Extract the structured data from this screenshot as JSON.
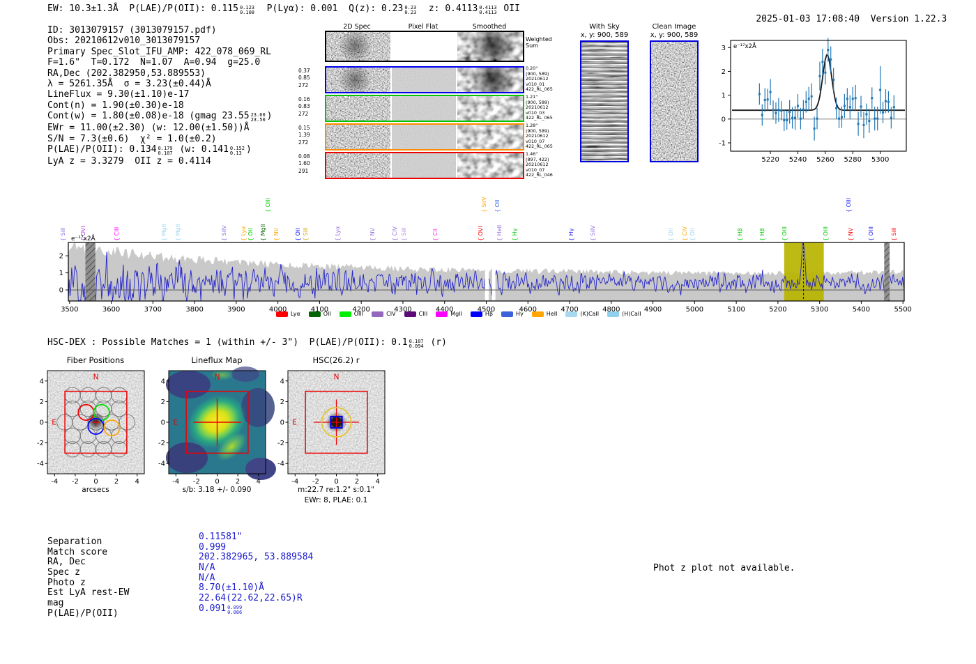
{
  "header": {
    "segments": [
      {
        "t": "EW: 10.3±1.3Å  P(LAE)/P(OII): 0.115"
      },
      {
        "hi": "0.123",
        "lo": "0.108"
      },
      {
        "t": "  P(Lyα): 0.001  Q(z): 0.23"
      },
      {
        "hi": "0.23",
        "lo": "0.23"
      },
      {
        "t": "  z: 0.4113"
      },
      {
        "hi": "0.4113",
        "lo": "0.4113"
      },
      {
        "t": " OII"
      }
    ],
    "timestamp": "2025-01-03 17:08:40",
    "version": "Version 1.22.3"
  },
  "info_lines": [
    [
      {
        "t": "ID: 3013079157 (3013079157.pdf)"
      }
    ],
    [
      {
        "t": "Obs: 20210612v010_3013079157"
      }
    ],
    [
      {
        "t": "Primary Spec_Slot_IFU_AMP: 422_078_069_RL"
      }
    ],
    [
      {
        "t": "F=1.6\"  T=0.172  N=1.07  A=0.94  g=25.0"
      }
    ],
    [
      {
        "t": "RA,Dec (202.382950,53.889553)"
      }
    ],
    [
      {
        "t": "λ = 5261.35Å  σ = 3.23(±0.44)Å"
      }
    ],
    [
      {
        "t": "LineFlux = 9.30(±1.10)e-17"
      }
    ],
    [
      {
        "t": "Cont(n) = 1.90(±0.30)e-18"
      }
    ],
    [
      {
        "t": "Cont(w) = 1.80(±0.08)e-18 (gmag 23.55"
      },
      {
        "hi": "23.60",
        "lo": "23.50"
      },
      {
        "t": ")"
      }
    ],
    [
      {
        "t": "EWr = 11.00(±2.30) (w: 12.00(±1.50))Å"
      }
    ],
    [
      {
        "t": "S/N = 7.3(±0.6)  χ² = 1.0(±0.2)"
      }
    ],
    [
      {
        "t": "P(LAE)/P(OII): 0.134"
      },
      {
        "hi": "0.179",
        "lo": "0.107"
      },
      {
        "t": " (w: 0.141"
      },
      {
        "hi": "0.152",
        "lo": "0.13"
      },
      {
        "t": ")"
      }
    ],
    [
      {
        "t": "LyA z = 3.3279  OII z = 0.4114"
      }
    ]
  ],
  "cutouts": {
    "col_headers": [
      "2D Spec",
      "Pixel Flat",
      "Smoothed"
    ],
    "rows": [
      {
        "border": "#000000",
        "kind": "weighted",
        "left": [],
        "right": [
          "Weighted",
          "Sum"
        ]
      },
      {
        "border": "#0000ee",
        "kind": "fiber",
        "left": [
          "0.37",
          "0.85",
          "272"
        ],
        "right": [
          "0.20\"",
          "(900, 589)",
          "20210612",
          "v010_01",
          "422_RL_065"
        ]
      },
      {
        "border": "#00c400",
        "kind": "fiber",
        "left": [
          "0.16",
          "0.83",
          "272"
        ],
        "right": [
          "1.21\"",
          "(900, 589)",
          "20210612",
          "v010_03",
          "422_RL_065"
        ]
      },
      {
        "border": "#ff8c00",
        "kind": "fiber",
        "left": [
          "0.15",
          "1.39",
          "272"
        ],
        "right": [
          "1.28\"",
          "(900, 589)",
          "20210612",
          "v010_07",
          "422_RL_065"
        ]
      },
      {
        "border": "#ee0000",
        "kind": "fiber",
        "left": [
          "0.08",
          "1.60",
          "291"
        ],
        "right": [
          "1.46\"",
          "(897, 422)",
          "20210612",
          "v010_07",
          "422_RL_046"
        ]
      }
    ]
  },
  "sky_panels": [
    {
      "title": "With Sky",
      "subtitle": "x, y: 900, 589"
    },
    {
      "title": "Clean Image",
      "subtitle": "x, y: 900, 589"
    }
  ],
  "hsc_match": {
    "segments": [
      {
        "t": "HSC-DEX : Possible Matches = 1 (within +/- 3\")  P(LAE)/P(OII): 0.1"
      },
      {
        "hi": "0.107",
        "lo": "0.094"
      },
      {
        "t": " (r)"
      }
    ]
  },
  "panels": {
    "fiber": {
      "title": "Fiber Positions",
      "xlabel": "arcsecs",
      "ticks": [
        -4,
        -2,
        0,
        2,
        4
      ],
      "compass_n": "N",
      "compass_e": "E"
    },
    "lineflux": {
      "title": "Lineflux Map",
      "caption": "s/b: 3.18 +/- 0.090",
      "ticks": [
        -4,
        -2,
        0,
        2,
        4
      ],
      "compass_n": "N",
      "compass_e": "E"
    },
    "hsc": {
      "title": "HSC(26.2) r",
      "caption1": "m:22.7  re:1.2\"  s:0.1\"",
      "caption2": "EWr: 8, PLAE: 0.1",
      "ticks": [
        -4,
        -2,
        0,
        2,
        4
      ],
      "compass_n": "N",
      "compass_e": "E"
    }
  },
  "match_table": {
    "rows": [
      {
        "label": "Separation",
        "segments": [
          {
            "t": "0.11581\""
          }
        ]
      },
      {
        "label": "Match score",
        "segments": [
          {
            "t": "0.999"
          }
        ]
      },
      {
        "label": "RA, Dec",
        "segments": [
          {
            "t": "202.382965, 53.889584"
          }
        ]
      },
      {
        "label": "Spec z",
        "segments": [
          {
            "t": "N/A"
          }
        ]
      },
      {
        "label": "Photo z",
        "segments": [
          {
            "t": "N/A"
          }
        ]
      },
      {
        "label": "Est LyA rest-EW",
        "segments": [
          {
            "t": "8.70(±1.10)Å"
          }
        ]
      },
      {
        "label": "mag",
        "segments": [
          {
            "t": "22.64(22.62,22.65)R"
          }
        ]
      },
      {
        "label": "P(LAE)/P(OII)",
        "segments": [
          {
            "t": "0.091"
          },
          {
            "hi": "0.099",
            "lo": "0.086"
          }
        ]
      }
    ]
  },
  "photz_note": "Phot z plot not available.",
  "chart_data": [
    {
      "id": "zoom_plot",
      "type": "scatter",
      "ylabel": "e⁻¹⁷x2Å",
      "xlim": [
        5191,
        5319
      ],
      "ylim": [
        -1.35,
        3.3
      ],
      "xticks": [
        5220,
        5240,
        5260,
        5280,
        5300
      ],
      "yticks": [
        -1,
        0,
        1,
        2,
        3
      ],
      "point_color": "#1f77b4",
      "fit_color": "#1a1a1a",
      "fit": {
        "type": "gaussian",
        "center": 5261.35,
        "sigma": 3.23,
        "amplitude": 2.33,
        "continuum": 0.37
      },
      "x": [
        5212,
        5214,
        5216,
        5218,
        5220,
        5222,
        5224,
        5226,
        5228,
        5230,
        5232,
        5234,
        5236,
        5238,
        5240,
        5242,
        5244,
        5246,
        5248,
        5250,
        5252,
        5254,
        5256,
        5258,
        5260,
        5262,
        5264,
        5266,
        5268,
        5270,
        5272,
        5274,
        5276,
        5278,
        5280,
        5282,
        5284,
        5286,
        5288,
        5290,
        5292,
        5294,
        5296,
        5298,
        5300,
        5302,
        5304,
        5306,
        5308,
        5310
      ],
      "y": [
        1.05,
        0.17,
        0.8,
        0.82,
        1.13,
        0.38,
        0.25,
        0.38,
        0.35,
        -0.05,
        -0.05,
        0.3,
        0.05,
        0.05,
        0.55,
        0.02,
        0.4,
        0.72,
        0.85,
        0.95,
        -0.4,
        0.02,
        1.8,
        2.4,
        1.95,
        2.9,
        2.5,
        1.65,
        0.45,
        0.02,
        0.08,
        0.55,
        0.85,
        0.5,
        0.85,
        0.88,
        -0.2,
        0.52,
        -0.25,
        0.2,
        -0.08,
        0.88,
        0.02,
        0.02,
        1.22,
        0.28,
        0.75,
        0.72,
        0.05,
        0.5
      ],
      "yerr": [
        0.45,
        0.45,
        0.5,
        0.45,
        0.55,
        0.4,
        0.45,
        0.5,
        0.4,
        0.45,
        0.4,
        0.5,
        0.45,
        0.5,
        0.5,
        0.45,
        0.4,
        0.45,
        0.5,
        0.55,
        0.5,
        0.45,
        0.6,
        0.55,
        0.5,
        0.5,
        0.55,
        0.5,
        0.45,
        0.4,
        0.45,
        0.5,
        0.45,
        0.5,
        0.5,
        0.55,
        0.5,
        0.45,
        0.55,
        0.45,
        0.5,
        0.45,
        0.5,
        0.5,
        1.0,
        0.45,
        0.5,
        0.45,
        0.45,
        0.5
      ]
    },
    {
      "id": "main_spectrum",
      "type": "line",
      "ylabel": "e⁻¹⁷x2Å",
      "xlim": [
        3497,
        5503
      ],
      "ylim": [
        -0.65,
        2.78
      ],
      "xticks": [
        3500,
        3600,
        3700,
        3800,
        3900,
        4000,
        4100,
        4200,
        4300,
        4400,
        4500,
        4600,
        4700,
        4800,
        4900,
        5000,
        5100,
        5200,
        5300,
        5400,
        5500
      ],
      "yticks": [
        0,
        1,
        2
      ],
      "line_color": "#2222cc",
      "noise_seed": 12,
      "continuum": 0.45,
      "envelope": [
        [
          3500,
          2.45
        ],
        [
          3650,
          2.05
        ],
        [
          3800,
          1.75
        ],
        [
          3950,
          1.5
        ],
        [
          4100,
          1.35
        ],
        [
          4300,
          1.2
        ],
        [
          4500,
          1.1
        ],
        [
          4700,
          1.05
        ],
        [
          4900,
          0.98
        ],
        [
          5100,
          0.95
        ],
        [
          5300,
          0.97
        ],
        [
          5500,
          1.02
        ]
      ],
      "detection": {
        "wave": 5261.35,
        "peak": 2.15
      },
      "masked_gaps": [
        [
          4497,
          4506
        ],
        [
          4514,
          4522
        ]
      ],
      "hatch_bands": [
        [
          3538,
          3562
        ],
        [
          5455,
          5468
        ]
      ],
      "highlight_band": {
        "range": [
          5215,
          5310
        ],
        "color": "#b9b400"
      },
      "legend": [
        {
          "label": "Lyα",
          "color": "#ff0000"
        },
        {
          "label": "OII",
          "color": "#006400"
        },
        {
          "label": "OIII",
          "color": "#00ee00"
        },
        {
          "label": "CIV",
          "color": "#9467bd"
        },
        {
          "label": "CIII",
          "color": "#5c0a78"
        },
        {
          "label": "MgII",
          "color": "#ff00ff"
        },
        {
          "label": "Hβ",
          "color": "#0000ff"
        },
        {
          "label": "Hγ",
          "color": "#3a62d9"
        },
        {
          "label": "HeII",
          "color": "#ffa500"
        },
        {
          "label": "(K)CaII",
          "color": "#a6d8ef"
        },
        {
          "label": "(H)CaII",
          "color": "#8fd0ef"
        }
      ],
      "line_labels": [
        {
          "name": "SiII",
          "wave": 3485,
          "color": "#9370db",
          "tier": 0
        },
        {
          "name": "OVI",
          "wave": 3533,
          "color": "#b040e0",
          "tier": 0
        },
        {
          "name": "CIII",
          "wave": 3614,
          "color": "#ff00ff",
          "tier": 0
        },
        {
          "name": "MgII",
          "wave": 3728,
          "color": "#9bd3f0",
          "tier": 0
        },
        {
          "name": "MgII",
          "wave": 3761,
          "color": "#9bd3f0",
          "tier": 0
        },
        {
          "name": "SiIV",
          "wave": 3872,
          "color": "#9370db",
          "tier": 0
        },
        {
          "name": "Lyα",
          "wave": 3919,
          "color": "#ffa500",
          "tier": 0
        },
        {
          "name": "OII",
          "wave": 3936,
          "color": "#00c800",
          "tier": 0
        },
        {
          "name": "MgII",
          "wave": 3966,
          "color": "#006400",
          "tier": 0
        },
        {
          "name": "OIII",
          "wave": 3978,
          "color": "#00d000",
          "tier": 1
        },
        {
          "name": "NV",
          "wave": 3998,
          "color": "#ffa500",
          "tier": 0
        },
        {
          "name": "OII",
          "wave": 4049,
          "color": "#0000ff",
          "tier": 0
        },
        {
          "name": "SiII",
          "wave": 4067,
          "color": "#cdad00",
          "tier": 0
        },
        {
          "name": "Lyα",
          "wave": 4144,
          "color": "#9370db",
          "tier": 0
        },
        {
          "name": "NV",
          "wave": 4228,
          "color": "#9370db",
          "tier": 0
        },
        {
          "name": "CIV",
          "wave": 4281,
          "color": "#9370db",
          "tier": 0
        },
        {
          "name": "SiII",
          "wave": 4303,
          "color": "#b48ee0",
          "tier": 0
        },
        {
          "name": "CII",
          "wave": 4379,
          "color": "#ff30e0",
          "tier": 0
        },
        {
          "name": "OVI",
          "wave": 4487,
          "color": "#ff0000",
          "tier": 0
        },
        {
          "name": "SiIV",
          "wave": 4495,
          "color": "#ffa500",
          "tier": 1
        },
        {
          "name": "OII",
          "wave": 4527,
          "color": "#4169e1",
          "tier": 1
        },
        {
          "name": "HeII",
          "wave": 4533,
          "color": "#9370db",
          "tier": 0
        },
        {
          "name": "Hγ",
          "wave": 4570,
          "color": "#00c800",
          "tier": 0
        },
        {
          "name": "Hγ",
          "wave": 4705,
          "color": "#2222ee",
          "tier": 0
        },
        {
          "name": "SiIV",
          "wave": 4757,
          "color": "#9370db",
          "tier": 0
        },
        {
          "name": "OII",
          "wave": 4945,
          "color": "#9bd3f0",
          "tier": 0
        },
        {
          "name": "CIV",
          "wave": 4977,
          "color": "#ffa500",
          "tier": 0
        },
        {
          "name": "OII",
          "wave": 4996,
          "color": "#9bd3f0",
          "tier": 0
        },
        {
          "name": "Hβ",
          "wave": 5110,
          "color": "#00c800",
          "tier": 0
        },
        {
          "name": "Hβ",
          "wave": 5163,
          "color": "#00c800",
          "tier": 0
        },
        {
          "name": "OIII",
          "wave": 5217,
          "color": "#00c800",
          "tier": 0
        },
        {
          "name": "OIII",
          "wave": 5316,
          "color": "#00c800",
          "tier": 0
        },
        {
          "name": "OIII",
          "wave": 5370,
          "color": "#2222ee",
          "tier": 1
        },
        {
          "name": "NV",
          "wave": 5376,
          "color": "#ff0000",
          "tier": 0
        },
        {
          "name": "OIII",
          "wave": 5425,
          "color": "#2222ee",
          "tier": 0
        },
        {
          "name": "SiII",
          "wave": 5479,
          "color": "#ff0000",
          "tier": 0
        }
      ]
    }
  ]
}
